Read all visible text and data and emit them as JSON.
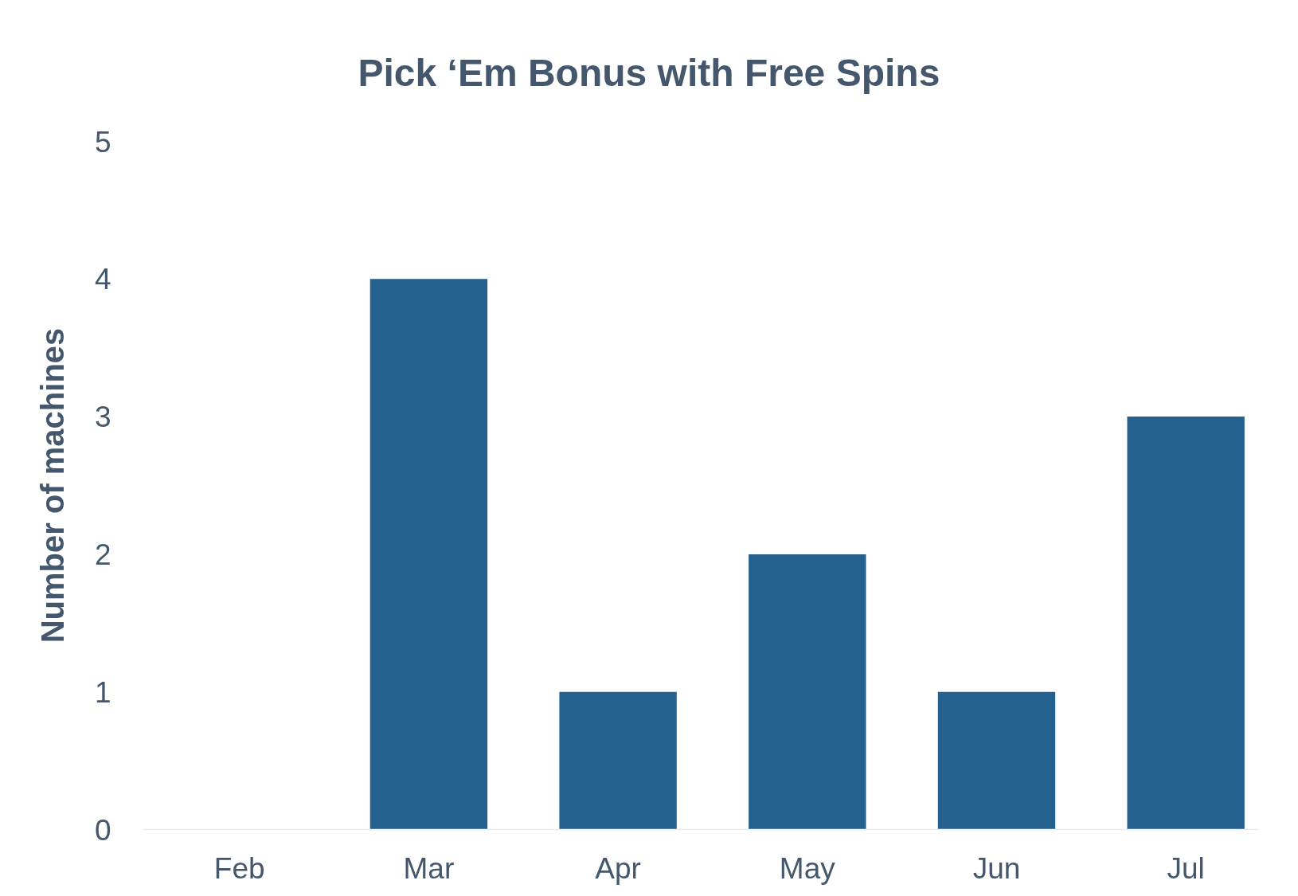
{
  "chart_data": {
    "type": "bar",
    "title": "Pick ‘Em Bonus with Free Spins",
    "ylabel": "Number of machines",
    "categories": [
      "Feb",
      "Mar",
      "Apr",
      "May",
      "Jun",
      "Jul"
    ],
    "values": [
      0,
      4,
      1,
      2,
      1,
      3
    ],
    "color": "#24618e",
    "ylim": [
      0,
      5
    ],
    "yticks": [
      0,
      1,
      2,
      3,
      4,
      5
    ],
    "grid": false
  }
}
